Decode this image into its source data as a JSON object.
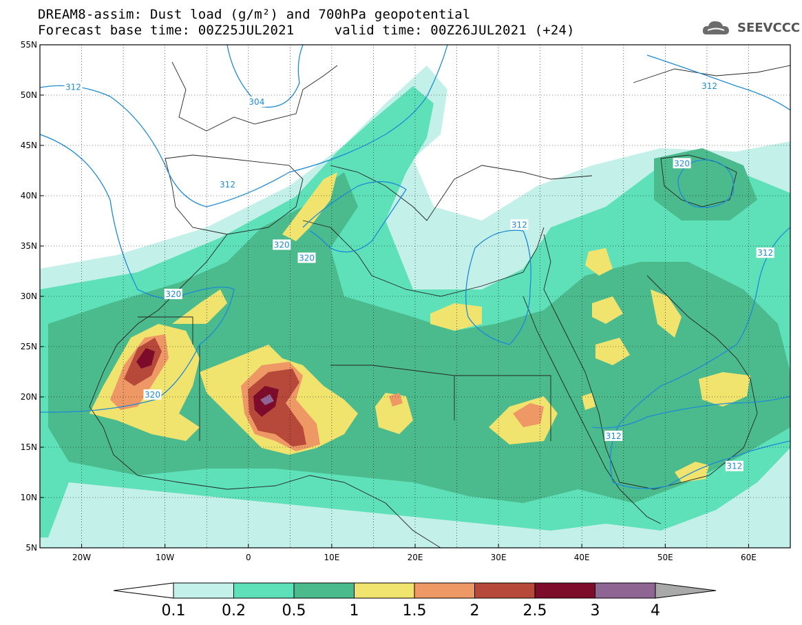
{
  "title": {
    "line1": "DREAM8-assim: Dust load (g/m²) and 700hPa geopotential",
    "line2": "Forecast base time: 00Z25JUL2021     valid time: 00Z26JUL2021 (+24)"
  },
  "logo": {
    "text": "SEEVCCC"
  },
  "map": {
    "lon_range": [
      -25,
      65
    ],
    "lat_range": [
      5,
      55
    ],
    "lon_ticks": [
      {
        "value": -20,
        "label": "20W"
      },
      {
        "value": -10,
        "label": "10W"
      },
      {
        "value": 0,
        "label": "0"
      },
      {
        "value": 10,
        "label": "10E"
      },
      {
        "value": 20,
        "label": "20E"
      },
      {
        "value": 30,
        "label": "30E"
      },
      {
        "value": 40,
        "label": "40E"
      },
      {
        "value": 50,
        "label": "50E"
      },
      {
        "value": 60,
        "label": "60E"
      }
    ],
    "lat_ticks": [
      {
        "value": 55,
        "label": "55N"
      },
      {
        "value": 50,
        "label": "50N"
      },
      {
        "value": 45,
        "label": "45N"
      },
      {
        "value": 40,
        "label": "40N"
      },
      {
        "value": 35,
        "label": "35N"
      },
      {
        "value": 30,
        "label": "30N"
      },
      {
        "value": 25,
        "label": "25N"
      },
      {
        "value": 20,
        "label": "20N"
      },
      {
        "value": 15,
        "label": "15N"
      },
      {
        "value": 10,
        "label": "10N"
      },
      {
        "value": 5,
        "label": "5N"
      }
    ],
    "contour_labels": [
      {
        "text": "312",
        "lon": -21,
        "lat": 50.8
      },
      {
        "text": "304",
        "lon": 1,
        "lat": 49.3
      },
      {
        "text": "312",
        "lon": -2.5,
        "lat": 41.1
      },
      {
        "text": "320",
        "lon": 4,
        "lat": 35.1
      },
      {
        "text": "320",
        "lon": 7,
        "lat": 33.8
      },
      {
        "text": "312",
        "lon": 32.5,
        "lat": 37.1
      },
      {
        "text": "320",
        "lon": -9,
        "lat": 30.2
      },
      {
        "text": "320",
        "lon": -11.5,
        "lat": 20.2
      },
      {
        "text": "312",
        "lon": 55.3,
        "lat": 50.9
      },
      {
        "text": "320",
        "lon": 52,
        "lat": 43.2
      },
      {
        "text": "312",
        "lon": 62,
        "lat": 34.3
      },
      {
        "text": "312",
        "lon": 43.8,
        "lat": 16.1
      },
      {
        "text": "312",
        "lon": 58.3,
        "lat": 13.1
      }
    ]
  },
  "colorbar": {
    "colors": [
      "#c3f0e8",
      "#5ee1b8",
      "#4bba8d",
      "#f0e36e",
      "#ee9866",
      "#b6493a",
      "#7c0c2a",
      "#8f6594"
    ],
    "over_color": "#a9a9a9",
    "labels": [
      "0.1",
      "0.2",
      "0.5",
      "1",
      "1.5",
      "2",
      "2.5",
      "3",
      "4"
    ]
  }
}
